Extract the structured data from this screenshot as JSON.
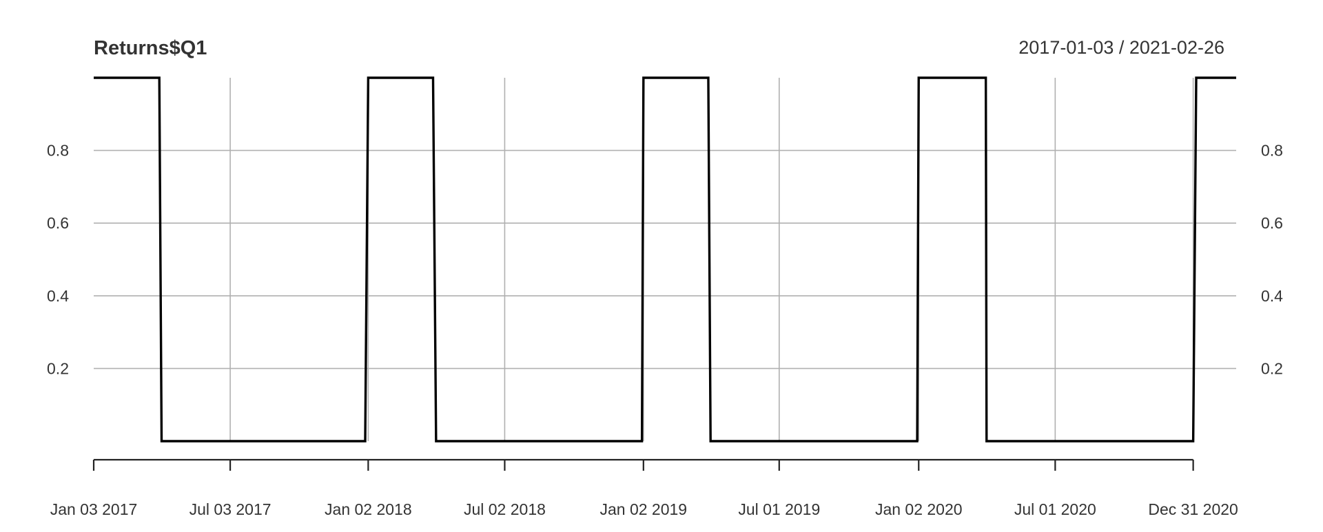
{
  "chart_data": {
    "type": "line",
    "title": "Returns$Q1",
    "date_range": "2017-01-03 / 2021-02-26",
    "xlabel": "",
    "ylabel": "",
    "x_range": [
      "2017-01-03",
      "2021-02-26"
    ],
    "ylim": [
      0,
      1
    ],
    "y_ticks": [
      0.2,
      0.4,
      0.6,
      0.8
    ],
    "y_tick_labels": [
      "0.2",
      "0.4",
      "0.6",
      "0.8"
    ],
    "y_tick_labels_right": [
      "0.2",
      "0.4",
      "0.6",
      "0.8"
    ],
    "x_ticks": [
      "2017-01-03",
      "2017-07-03",
      "2018-01-02",
      "2018-07-02",
      "2019-01-02",
      "2019-07-01",
      "2020-01-02",
      "2020-07-01",
      "2020-12-31"
    ],
    "x_tick_labels": [
      "Jan 03 2017",
      "Jul 03 2017",
      "Jan 02 2018",
      "Jul 02 2018",
      "Jan 02 2019",
      "Jul 01 2019",
      "Jan 02 2020",
      "Jul 01 2020",
      "Dec 31 2020"
    ],
    "grid": true,
    "colors": {
      "series": "#000000",
      "grid": "#b0b0b0",
      "axis": "#222222",
      "text": "#333333"
    },
    "series": [
      {
        "x": [
          "2017-01-03",
          "2017-03-31",
          "2017-04-03",
          "2017-12-29",
          "2018-01-02",
          "2018-03-29",
          "2018-04-02",
          "2018-12-31",
          "2019-01-02",
          "2019-03-29",
          "2019-04-01",
          "2019-12-31",
          "2020-01-02",
          "2020-03-31",
          "2020-04-01",
          "2020-12-31",
          "2021-01-04",
          "2021-02-26"
        ],
        "values": [
          1,
          1,
          0,
          0,
          1,
          1,
          0,
          0,
          1,
          1,
          0,
          0,
          1,
          1,
          0,
          0,
          1,
          1
        ]
      }
    ]
  }
}
